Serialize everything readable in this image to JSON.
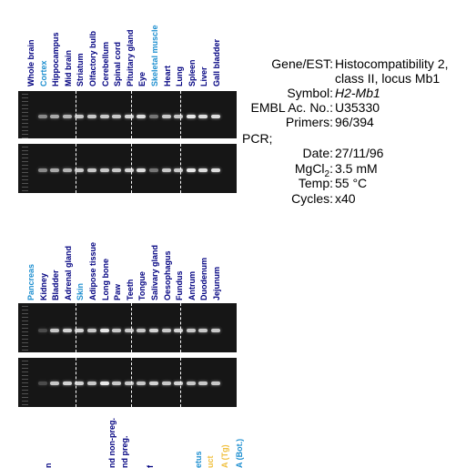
{
  "top_panel": {
    "lanes": [
      {
        "label": "Whole brain",
        "color": "#000080",
        "intensity": 0.0
      },
      {
        "label": "Cortex",
        "color": "#1e8fd0",
        "intensity": 0.55
      },
      {
        "label": "Hippocampus",
        "color": "#000080",
        "intensity": 0.7
      },
      {
        "label": "Mid brain",
        "color": "#000080",
        "intensity": 0.75
      },
      {
        "label": "Striatum",
        "color": "#000080",
        "intensity": 0.85
      },
      {
        "label": "Olfactory bulb",
        "color": "#000080",
        "intensity": 0.85
      },
      {
        "label": "Cerebellum",
        "color": "#000080",
        "intensity": 0.85
      },
      {
        "label": "Spinal cord",
        "color": "#000080",
        "intensity": 0.85
      },
      {
        "label": "Pituitary gland",
        "color": "#000080",
        "intensity": 0.9
      },
      {
        "label": "Eye",
        "color": "#000080",
        "intensity": 0.95
      },
      {
        "label": "Skeletal muscle",
        "color": "#1e8fd0",
        "intensity": 0.45
      },
      {
        "label": "Heart",
        "color": "#000080",
        "intensity": 0.85
      },
      {
        "label": "Lung",
        "color": "#000080",
        "intensity": 0.85
      },
      {
        "label": "Spleen",
        "color": "#000080",
        "intensity": 1.0
      },
      {
        "label": "Liver",
        "color": "#000080",
        "intensity": 0.95
      },
      {
        "label": "Gall bladder",
        "color": "#000080",
        "intensity": 0.95
      }
    ]
  },
  "bottom_panel": {
    "lanes": [
      {
        "label": "Pancreas",
        "color": "#1e8fd0",
        "intensity": 0.0
      },
      {
        "label": "Kidney",
        "color": "#000080",
        "intensity": 0.1
      },
      {
        "label": "Bladder",
        "color": "#000080",
        "intensity": 0.85
      },
      {
        "label": "Adrenal gland",
        "color": "#000080",
        "intensity": 0.9
      },
      {
        "label": "Skin",
        "color": "#1e8fd0",
        "intensity": 0.9
      },
      {
        "label": "Adipose tissue",
        "color": "#000080",
        "intensity": 0.85
      },
      {
        "label": "Long bone",
        "color": "#000080",
        "intensity": 1.0
      },
      {
        "label": "Paw",
        "color": "#000080",
        "intensity": 0.85
      },
      {
        "label": "Teeth",
        "color": "#000080",
        "intensity": 0.85
      },
      {
        "label": "Tongue",
        "color": "#000080",
        "intensity": 0.85
      },
      {
        "label": "Salivary gland",
        "color": "#000080",
        "intensity": 0.9
      },
      {
        "label": "Oesophagus",
        "color": "#000080",
        "intensity": 0.85
      },
      {
        "label": "Fundus",
        "color": "#000080",
        "intensity": 0.9
      },
      {
        "label": "Antrum",
        "color": "#000080",
        "intensity": 0.85
      },
      {
        "label": "Duodenum",
        "color": "#000080",
        "intensity": 0.85
      },
      {
        "label": "Jejunum",
        "color": "#000080",
        "intensity": 0.85
      }
    ]
  },
  "third_panel_partial_labels": [
    {
      "label": "n",
      "color": "#000080"
    },
    {
      "label": "nd non-preg.",
      "color": "#000080"
    },
    {
      "label": "nd preg.",
      "color": "#000080"
    },
    {
      "label": "f",
      "color": "#000080"
    },
    {
      "label": "etus",
      "color": "#1e8fd0"
    },
    {
      "label": "uct",
      "color": "#f0c040"
    },
    {
      "label": "A (Tg)",
      "color": "#f0c040"
    },
    {
      "label": "A (Bot.)",
      "color": "#1e8fd0"
    }
  ],
  "info": {
    "gene_key": "Gene/EST:",
    "gene_value_line1": "Histocompatibility 2,",
    "gene_value_line2": "class II, locus Mb1",
    "symbol_key": "Symbol:",
    "symbol_value": "H2-Mb1",
    "embl_key": "EMBL Ac. No.:",
    "embl_value": "U35330",
    "primers_key": "Primers:",
    "primers_value": "96/394",
    "pcr_label": "PCR;",
    "date_key": "Date:",
    "date_value": "27/11/96",
    "mgcl_key": "MgCl",
    "mgcl_sub": "2",
    "mgcl_colon": ":",
    "mgcl_value": "3.5 mM",
    "temp_key": "Temp:",
    "temp_value": "55 °C",
    "cycles_key": "Cycles:",
    "cycles_value": "x40"
  }
}
